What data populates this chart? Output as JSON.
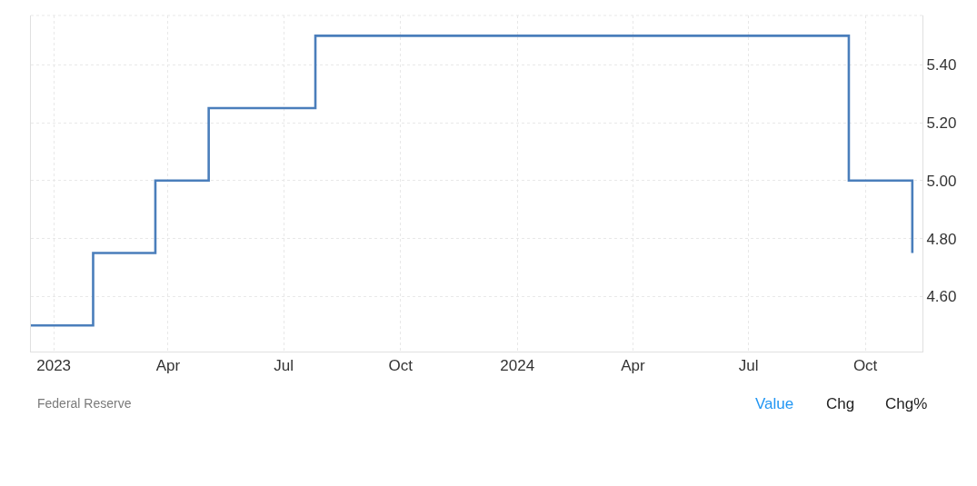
{
  "chart_data": {
    "type": "step",
    "x": [
      "2022-12-14",
      "2023-02-01",
      "2023-03-22",
      "2023-05-03",
      "2023-07-26",
      "2024-09-18",
      "2024-11-07"
    ],
    "values": [
      4.5,
      4.75,
      5.0,
      5.25,
      5.5,
      5.0,
      4.75
    ],
    "color": "#4a7ebb",
    "xlim": [
      "2022-12-14",
      "2024-11-15"
    ],
    "xticks": [
      {
        "value": "2023-01-01",
        "label": "2023"
      },
      {
        "value": "2023-04-01",
        "label": "Apr"
      },
      {
        "value": "2023-07-01",
        "label": "Jul"
      },
      {
        "value": "2023-10-01",
        "label": "Oct"
      },
      {
        "value": "2024-01-01",
        "label": "2024"
      },
      {
        "value": "2024-04-01",
        "label": "Apr"
      },
      {
        "value": "2024-07-01",
        "label": "Jul"
      },
      {
        "value": "2024-10-01",
        "label": "Oct"
      }
    ],
    "ylim": [
      4.41,
      5.57
    ],
    "yticks": [
      {
        "value": 4.6,
        "label": "4.60"
      },
      {
        "value": 4.8,
        "label": "4.80"
      },
      {
        "value": 5.0,
        "label": "5.00"
      },
      {
        "value": 5.2,
        "label": "5.20"
      },
      {
        "value": 5.4,
        "label": "5.40"
      }
    ],
    "grid": true,
    "annotations": [
      "Federal Reserve",
      "Value",
      "Chg",
      "Chg%"
    ]
  }
}
